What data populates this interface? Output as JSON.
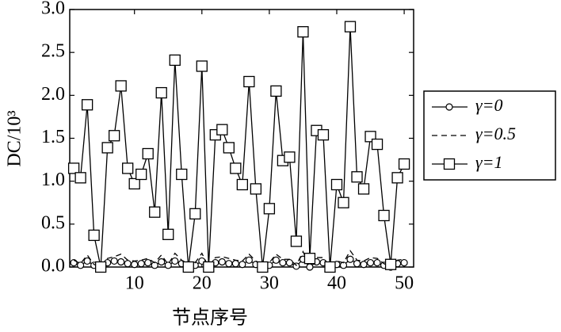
{
  "chart_data": {
    "type": "line",
    "x": [
      1,
      2,
      3,
      4,
      5,
      6,
      7,
      8,
      9,
      10,
      11,
      12,
      13,
      14,
      15,
      16,
      17,
      18,
      19,
      20,
      21,
      22,
      23,
      24,
      25,
      26,
      27,
      28,
      29,
      30,
      31,
      32,
      33,
      34,
      35,
      36,
      37,
      38,
      39,
      40,
      41,
      42,
      43,
      44,
      45,
      46,
      47,
      48,
      49,
      50
    ],
    "xlabel": "节点序号",
    "ylabel": "DC/10³",
    "xlim": [
      0.4,
      51.4
    ],
    "xticks": [
      10,
      20,
      30,
      40,
      50
    ],
    "ylim": [
      0,
      3
    ],
    "yticks": [
      {
        "value": 0,
        "label": "0.0"
      },
      {
        "value": 0.5,
        "label": "0.5"
      },
      {
        "value": 1,
        "label": "1.0"
      },
      {
        "value": 1.5,
        "label": "1.5"
      },
      {
        "value": 2,
        "label": "2.0"
      },
      {
        "value": 2.5,
        "label": "2.5"
      },
      {
        "value": 3,
        "label": "3.0"
      }
    ],
    "legend": "right",
    "series": [
      {
        "name": "γ=0",
        "color": "#000000",
        "marker": "circle",
        "dash": "solid",
        "values": [
          0.05,
          0.02,
          0.07,
          0.02,
          0.0,
          0.05,
          0.07,
          0.06,
          0.04,
          0.03,
          0.04,
          0.05,
          0.02,
          0.06,
          0.02,
          0.07,
          0.04,
          0.0,
          0.02,
          0.07,
          0.0,
          0.05,
          0.06,
          0.04,
          0.04,
          0.03,
          0.08,
          0.03,
          0.0,
          0.02,
          0.08,
          0.05,
          0.05,
          0.01,
          0.09,
          0.0,
          0.06,
          0.05,
          0.0,
          0.03,
          0.02,
          0.09,
          0.04,
          0.03,
          0.05,
          0.05,
          0.02,
          0.0,
          0.04,
          0.05
        ]
      },
      {
        "name": "γ=0.5",
        "color": "#000000",
        "marker": "none",
        "dash": "dashed",
        "values": [
          0.08,
          0.04,
          0.14,
          0.03,
          0.0,
          0.1,
          0.12,
          0.15,
          0.08,
          0.07,
          0.08,
          0.1,
          0.05,
          0.14,
          0.03,
          0.16,
          0.08,
          0.0,
          0.05,
          0.16,
          0.0,
          0.11,
          0.12,
          0.1,
          0.08,
          0.07,
          0.15,
          0.07,
          0.0,
          0.05,
          0.15,
          0.09,
          0.09,
          0.02,
          0.18,
          0.01,
          0.11,
          0.11,
          0.0,
          0.07,
          0.05,
          0.19,
          0.08,
          0.07,
          0.11,
          0.1,
          0.04,
          0.0,
          0.08,
          0.09
        ]
      },
      {
        "name": "γ=1",
        "color": "#000000",
        "marker": "square",
        "dash": "solid",
        "values": [
          1.15,
          1.04,
          1.89,
          0.37,
          0.0,
          1.39,
          1.53,
          2.11,
          1.15,
          0.97,
          1.08,
          1.32,
          0.64,
          2.03,
          0.38,
          2.41,
          1.08,
          0.0,
          0.62,
          2.34,
          0.0,
          1.54,
          1.6,
          1.39,
          1.15,
          0.96,
          2.16,
          0.91,
          0.0,
          0.68,
          2.05,
          1.24,
          1.28,
          0.3,
          2.74,
          0.1,
          1.59,
          1.54,
          0.0,
          0.96,
          0.75,
          2.8,
          1.05,
          0.91,
          1.52,
          1.43,
          0.6,
          0.03,
          1.04,
          1.2
        ]
      }
    ]
  }
}
